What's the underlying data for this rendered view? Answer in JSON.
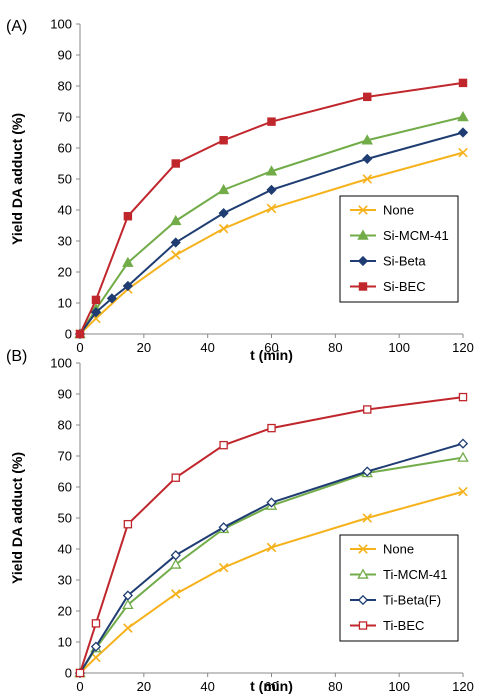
{
  "chart_data": [
    {
      "type": "line",
      "panel_label": "(A)",
      "xlabel": "t (min)",
      "ylabel": "Yield DA adduct (%)",
      "xlim": [
        0,
        120
      ],
      "ylim": [
        0,
        100
      ],
      "x_ticks": [
        0,
        20,
        40,
        60,
        80,
        100,
        120
      ],
      "y_ticks": [
        0,
        10,
        20,
        30,
        40,
        50,
        60,
        70,
        80,
        90,
        100
      ],
      "grid": false,
      "legend_position": "bottom-right",
      "series": [
        {
          "name": "None",
          "color": "#f5b21c",
          "marker": "x",
          "filled": false,
          "x": [
            0,
            5,
            15,
            30,
            45,
            60,
            90,
            120
          ],
          "y": [
            0,
            5,
            14.5,
            25.5,
            34,
            40.5,
            50,
            58.5
          ]
        },
        {
          "name": "Si-MCM-41",
          "color": "#72ac49",
          "marker": "triangle",
          "filled": true,
          "x": [
            0,
            5,
            15,
            30,
            45,
            60,
            90,
            120
          ],
          "y": [
            0,
            8,
            23,
            36.5,
            46.5,
            52.5,
            62.5,
            70
          ]
        },
        {
          "name": "Si-Beta",
          "color": "#1f3d73",
          "marker": "diamond",
          "filled": true,
          "x": [
            0,
            5,
            10,
            15,
            30,
            45,
            60,
            90,
            120
          ],
          "y": [
            0,
            7,
            11.5,
            15.5,
            29.5,
            39,
            46.5,
            56.5,
            65
          ]
        },
        {
          "name": "Si-BEC",
          "color": "#c0272d",
          "marker": "square",
          "filled": true,
          "x": [
            0,
            5,
            15,
            30,
            45,
            60,
            90,
            120
          ],
          "y": [
            0,
            11,
            38,
            55,
            62.5,
            68.5,
            76.5,
            81
          ]
        }
      ]
    },
    {
      "type": "line",
      "panel_label": "(B)",
      "xlabel": "t (min)",
      "ylabel": "Yield DA adduct (%)",
      "xlim": [
        0,
        120
      ],
      "ylim": [
        0,
        100
      ],
      "x_ticks": [
        0,
        20,
        40,
        60,
        80,
        100,
        120
      ],
      "y_ticks": [
        0,
        10,
        20,
        30,
        40,
        50,
        60,
        70,
        80,
        90,
        100
      ],
      "grid": false,
      "legend_position": "bottom-right",
      "series": [
        {
          "name": "None",
          "color": "#f5b21c",
          "marker": "x",
          "filled": false,
          "x": [
            0,
            5,
            15,
            30,
            45,
            60,
            90,
            120
          ],
          "y": [
            0,
            5,
            14.5,
            25.5,
            34,
            40.5,
            50,
            58.5
          ]
        },
        {
          "name": "Ti-MCM-41",
          "color": "#72ac49",
          "marker": "triangle",
          "filled": false,
          "x": [
            0,
            5,
            15,
            30,
            45,
            60,
            90,
            120
          ],
          "y": [
            0,
            8,
            22,
            35,
            46.5,
            54,
            64.5,
            69.5
          ]
        },
        {
          "name": "Ti-Beta(F)",
          "color": "#1f3d73",
          "marker": "diamond",
          "filled": false,
          "x": [
            0,
            5,
            15,
            30,
            45,
            60,
            90,
            120
          ],
          "y": [
            0,
            8.5,
            25,
            38,
            47,
            55,
            65,
            74
          ]
        },
        {
          "name": "Ti-BEC",
          "color": "#c0272d",
          "marker": "square",
          "filled": false,
          "x": [
            0,
            5,
            15,
            30,
            45,
            60,
            90,
            120
          ],
          "y": [
            0,
            16,
            48,
            63,
            73.5,
            79,
            85,
            89
          ]
        }
      ]
    }
  ]
}
